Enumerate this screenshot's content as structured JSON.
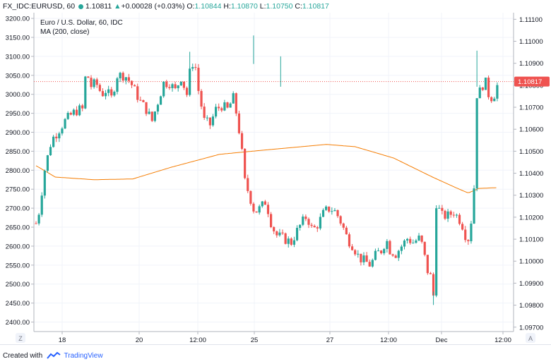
{
  "header": {
    "symbol": "FX_IDC:EURUSD, 60",
    "last": "1.10811",
    "change": "+0.00028 (+0.03%)",
    "o_label": "O:",
    "o": "1.10844",
    "h_label": "H:",
    "h": "1.10870",
    "l_label": "L:",
    "l": "1.10750",
    "c_label": "C:",
    "c": "1.10817"
  },
  "legend": {
    "series_title": "Euro / U.S. Dollar, 60, IDC",
    "ma_title": "MA (200, close)"
  },
  "footer": {
    "created_with": "Created with",
    "brand": "TradingView"
  },
  "corner_left": "Z",
  "corner_right": "A",
  "colors": {
    "up": "#26a69a",
    "down": "#ef5350",
    "ma": "#f57c00",
    "price_line": "#ef5350",
    "grid": "#f0f3fa"
  },
  "chart_data": {
    "type": "candlestick",
    "title": "Euro / U.S. Dollar, 60, IDC",
    "y_left": {
      "ticks": [
        "3200.00",
        "3150.00",
        "3100.00",
        "3050.00",
        "3000.00",
        "2950.00",
        "2900.00",
        "2850.00",
        "2800.00",
        "2750.00",
        "2700.00",
        "2650.00",
        "2600.00",
        "2550.00",
        "2500.00",
        "2450.00",
        "2400.00"
      ],
      "range": [
        2375,
        3215
      ]
    },
    "y_right": {
      "ticks": [
        "1.11100",
        "1.11000",
        "1.10900",
        "1.10800",
        "1.10700",
        "1.10600",
        "1.10500",
        "1.10400",
        "1.10300",
        "1.10200",
        "1.10100",
        "1.10000",
        "1.09900",
        "1.09800",
        "1.09700"
      ],
      "range": [
        1.0968,
        1.1113
      ]
    },
    "x_ticks": [
      "18",
      "20",
      "12:00",
      "25",
      "27",
      "12:00",
      "Dec",
      "12:00"
    ],
    "last_price_label": "1.10817",
    "last_price": 1.10817,
    "price_anchors": [
      [
        0,
        2660
      ],
      [
        4,
        2700
      ],
      [
        8,
        2790
      ],
      [
        12,
        2835
      ],
      [
        16,
        2880
      ],
      [
        22,
        2900
      ],
      [
        30,
        2930
      ],
      [
        38,
        2950
      ],
      [
        44,
        2960
      ],
      [
        48,
        2960
      ],
      [
        52,
        3070
      ],
      [
        56,
        3020
      ],
      [
        62,
        3030
      ],
      [
        68,
        3000
      ],
      [
        72,
        3010
      ],
      [
        78,
        2990
      ],
      [
        84,
        3050
      ],
      [
        92,
        3050
      ],
      [
        98,
        3030
      ],
      [
        104,
        3000
      ],
      [
        108,
        2980
      ],
      [
        114,
        2960
      ],
      [
        120,
        2930
      ],
      [
        126,
        2980
      ],
      [
        132,
        3030
      ],
      [
        138,
        3030
      ],
      [
        144,
        3010
      ],
      [
        150,
        3045
      ],
      [
        156,
        3000
      ],
      [
        160,
        3075
      ],
      [
        164,
        3090
      ],
      [
        168,
        3010
      ],
      [
        174,
        2930
      ],
      [
        180,
        2920
      ],
      [
        186,
        2960
      ],
      [
        192,
        2970
      ],
      [
        198,
        2960
      ],
      [
        204,
        2990
      ],
      [
        208,
        2940
      ],
      [
        212,
        2870
      ],
      [
        216,
        2770
      ],
      [
        220,
        2740
      ],
      [
        226,
        2690
      ],
      [
        232,
        2700
      ],
      [
        238,
        2720
      ],
      [
        242,
        2670
      ],
      [
        248,
        2630
      ],
      [
        256,
        2620
      ],
      [
        264,
        2610
      ],
      [
        272,
        2650
      ],
      [
        280,
        2680
      ],
      [
        286,
        2640
      ],
      [
        292,
        2660
      ],
      [
        298,
        2690
      ],
      [
        304,
        2700
      ],
      [
        310,
        2690
      ],
      [
        316,
        2660
      ],
      [
        322,
        2620
      ],
      [
        328,
        2600
      ],
      [
        334,
        2570
      ],
      [
        340,
        2560
      ],
      [
        346,
        2550
      ],
      [
        352,
        2580
      ],
      [
        358,
        2590
      ],
      [
        362,
        2620
      ],
      [
        366,
        2590
      ],
      [
        372,
        2580
      ],
      [
        378,
        2600
      ],
      [
        384,
        2620
      ],
      [
        390,
        2610
      ],
      [
        396,
        2620
      ],
      [
        400,
        2600
      ],
      [
        404,
        2540
      ],
      [
        408,
        2520
      ],
      [
        411,
        2470
      ],
      [
        413,
        2720
      ],
      [
        416,
        2700
      ],
      [
        420,
        2680
      ],
      [
        426,
        2680
      ],
      [
        432,
        2690
      ],
      [
        438,
        2670
      ],
      [
        442,
        2650
      ],
      [
        446,
        2610
      ],
      [
        449,
        2640
      ],
      [
        452,
        2720
      ],
      [
        454,
        2790
      ],
      [
        456,
        3000
      ],
      [
        460,
        3010
      ],
      [
        464,
        3040
      ],
      [
        468,
        3000
      ],
      [
        472,
        2990
      ],
      [
        476,
        3010
      ],
      [
        480,
        3060
      ]
    ],
    "ma_anchors": [
      [
        0,
        2812
      ],
      [
        20,
        2782
      ],
      [
        60,
        2775
      ],
      [
        100,
        2777
      ],
      [
        140,
        2808
      ],
      [
        190,
        2842
      ],
      [
        240,
        2854
      ],
      [
        300,
        2868
      ],
      [
        330,
        2862
      ],
      [
        370,
        2832
      ],
      [
        410,
        2782
      ],
      [
        436,
        2752
      ],
      [
        447,
        2740
      ],
      [
        458,
        2752
      ],
      [
        476,
        2754
      ]
    ]
  }
}
